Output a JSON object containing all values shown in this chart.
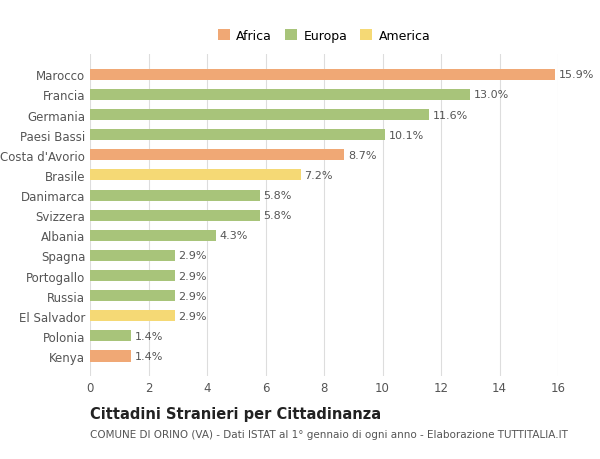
{
  "countries": [
    "Marocco",
    "Francia",
    "Germania",
    "Paesi Bassi",
    "Costa d'Avorio",
    "Brasile",
    "Danimarca",
    "Svizzera",
    "Albania",
    "Spagna",
    "Portogallo",
    "Russia",
    "El Salvador",
    "Polonia",
    "Kenya"
  ],
  "values": [
    15.9,
    13.0,
    11.6,
    10.1,
    8.7,
    7.2,
    5.8,
    5.8,
    4.3,
    2.9,
    2.9,
    2.9,
    2.9,
    1.4,
    1.4
  ],
  "categories": [
    "Africa",
    "Europa",
    "Europa",
    "Europa",
    "Africa",
    "America",
    "Europa",
    "Europa",
    "Europa",
    "Europa",
    "Europa",
    "Europa",
    "America",
    "Europa",
    "Africa"
  ],
  "colors": {
    "Africa": "#F0A875",
    "Europa": "#A8C47A",
    "America": "#F5D975"
  },
  "legend_labels": [
    "Africa",
    "Europa",
    "America"
  ],
  "legend_colors": [
    "#F0A875",
    "#A8C47A",
    "#F5D975"
  ],
  "title": "Cittadini Stranieri per Cittadinanza",
  "subtitle": "COMUNE DI ORINO (VA) - Dati ISTAT al 1° gennaio di ogni anno - Elaborazione TUTTITALIA.IT",
  "xlim": [
    0,
    16
  ],
  "xticks": [
    0,
    2,
    4,
    6,
    8,
    10,
    12,
    14,
    16
  ],
  "background_color": "#ffffff",
  "grid_color": "#dddddd",
  "bar_height": 0.55,
  "label_fontsize": 8,
  "title_fontsize": 10.5,
  "subtitle_fontsize": 7.5,
  "tick_fontsize": 8.5,
  "legend_fontsize": 9
}
